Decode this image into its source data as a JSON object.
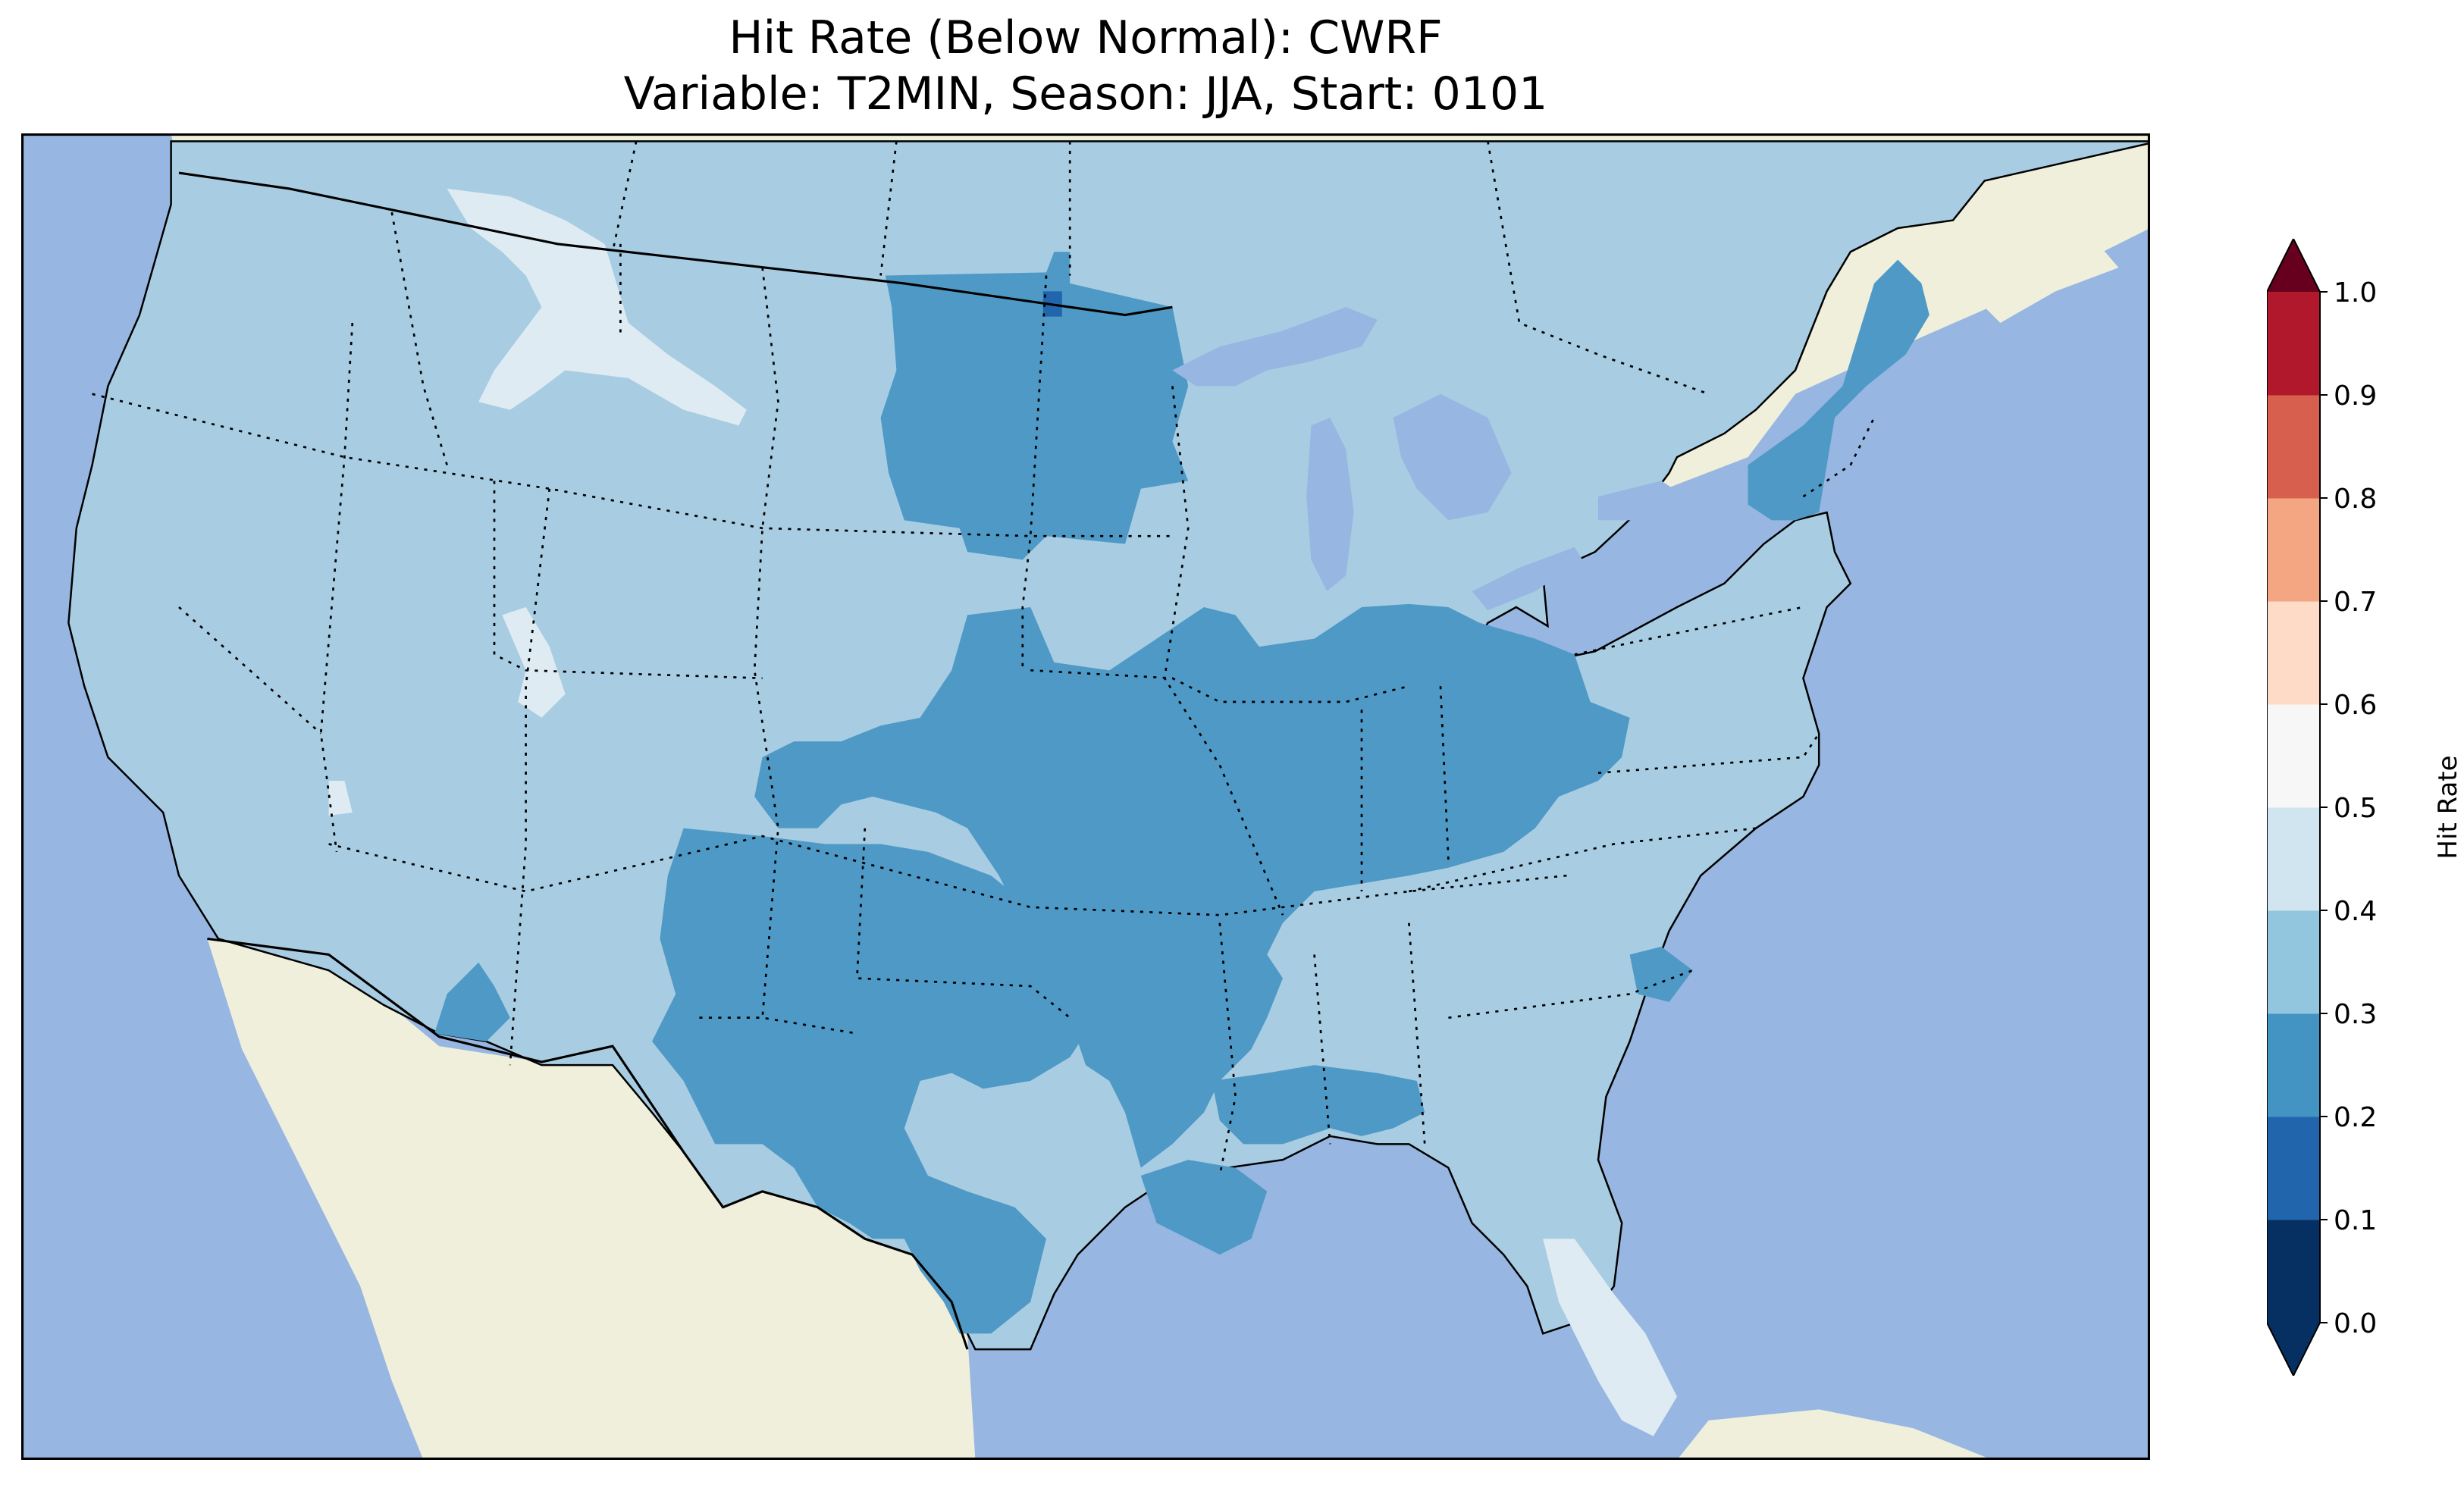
{
  "title": {
    "line1": "Hit Rate (Below Normal): CWRF",
    "line2": "Variable: T2MIN, Season: JJA, Start: 0101"
  },
  "colorbar": {
    "label": "Hit Rate",
    "ticks": [
      "0.0",
      "0.1",
      "0.2",
      "0.3",
      "0.4",
      "0.5",
      "0.6",
      "0.7",
      "0.8",
      "0.9",
      "1.0"
    ],
    "bin_colors": [
      "#053061",
      "#2166ac",
      "#4393c3",
      "#92c5de",
      "#d1e5f0",
      "#f7f7f7",
      "#fddbc7",
      "#f4a582",
      "#d6604d",
      "#b2182b"
    ],
    "under_color": "#053061",
    "over_color": "#67001f"
  },
  "map": {
    "ocean_color": "#97b6e1",
    "land_color": "#efefdb",
    "level_colors": {
      "0.1-0.2": "#2166ac",
      "0.2-0.3": "#4f99c6",
      "0.3-0.4": "#a8cde2",
      "0.4-0.5": "#dfebf3"
    },
    "dominant_hit_rate_range": "0.3-0.4",
    "region_values": [
      {
        "region": "Texas and southern Plains",
        "range": "0.2-0.3"
      },
      {
        "region": "Corn Belt / Ohio Valley",
        "range": "0.2-0.3"
      },
      {
        "region": "Dakotas and Minnesota",
        "range": "0.2-0.3"
      },
      {
        "region": "New England",
        "range": "0.2-0.3"
      },
      {
        "region": "West and Great Basin",
        "range": "0.3-0.4"
      },
      {
        "region": "Southeast",
        "range": "0.3-0.4"
      },
      {
        "region": "Florida peninsula",
        "range": "0.4-0.5"
      },
      {
        "region": "Northern Rockies highlands",
        "range": "0.4-0.5"
      },
      {
        "region": "Northern Minnesota spot",
        "range": "0.1-0.2"
      }
    ]
  }
}
